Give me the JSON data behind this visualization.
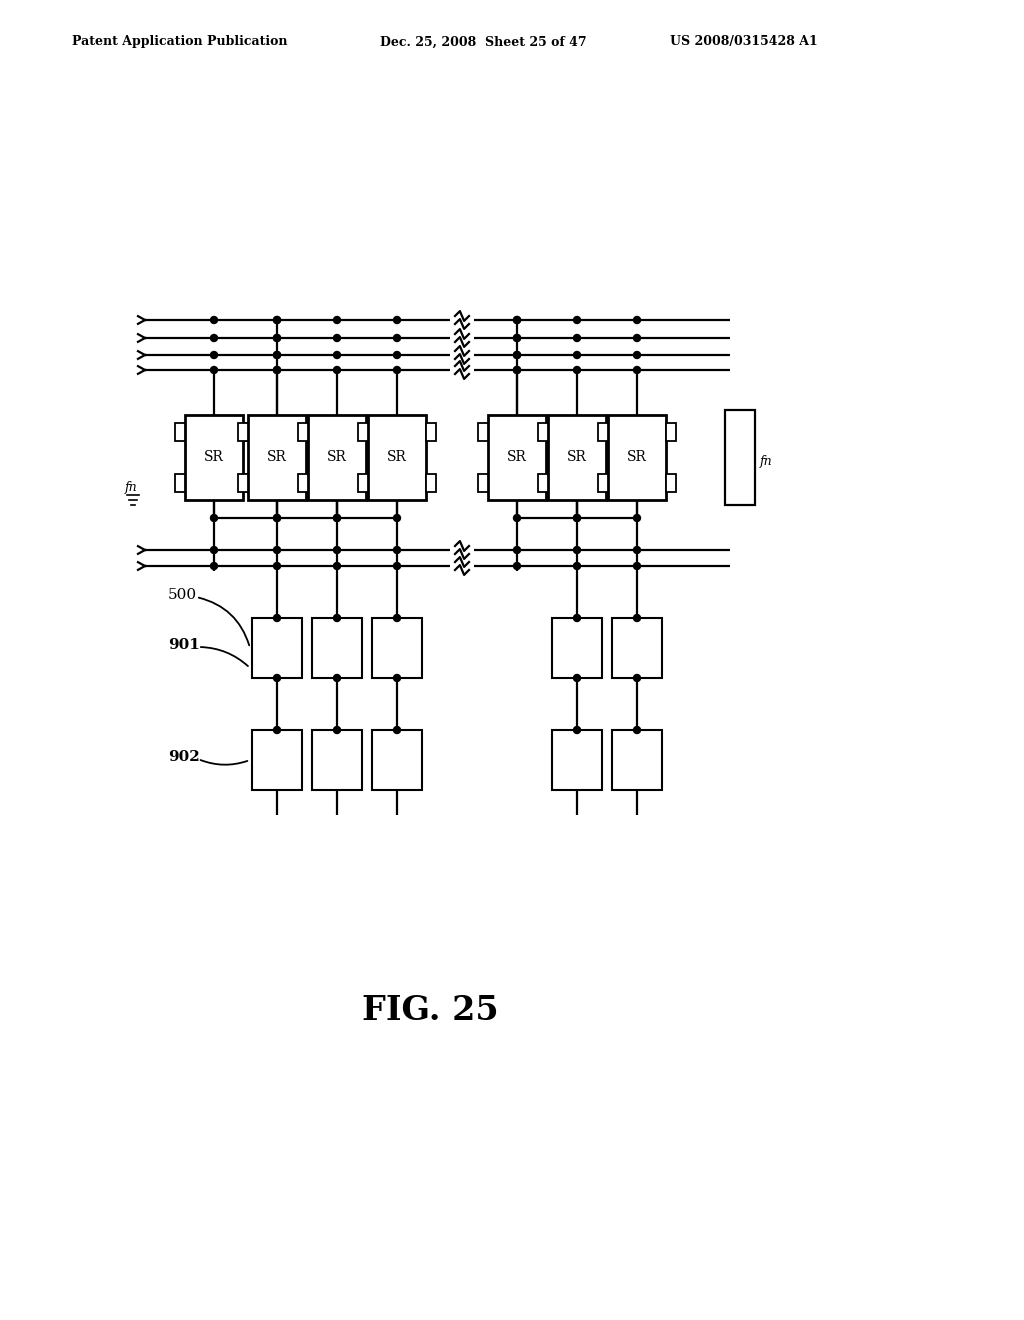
{
  "header_left": "Patent Application Publication",
  "header_center": "Dec. 25, 2008  Sheet 25 of 47",
  "header_right": "US 2008/0315428 A1",
  "fig_label": "FIG. 25",
  "bg_color": "#ffffff",
  "line_color": "#000000",
  "lw": 1.6
}
